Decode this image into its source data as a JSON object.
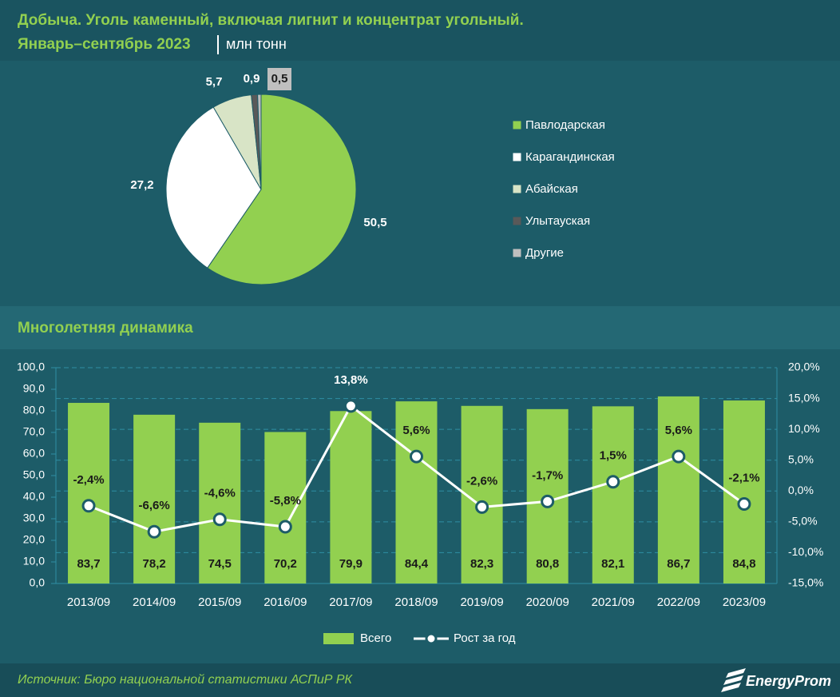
{
  "chart_data": [
    {
      "type": "pie",
      "title": "Добыча. Уголь каменный, включая лигнит и концентрат угольный.",
      "subtitle": "Январь–сентябрь 2023",
      "unit": "млн тонн",
      "categories": [
        "Павлодарская",
        "Карагандинская",
        "Абайская",
        "Улытауская",
        "Другие"
      ],
      "values": [
        50.5,
        27.2,
        5.7,
        0.9,
        0.5
      ],
      "value_labels": [
        "50,5",
        "27,2",
        "5,7",
        "0,9",
        "0,5"
      ],
      "colors": [
        "#92d050",
        "#ffffff",
        "#d8e4c6",
        "#595959",
        "#bfbfbf"
      ]
    },
    {
      "type": "bar",
      "title": "Многолетняя динамика",
      "categories": [
        "2013/09",
        "2014/09",
        "2015/09",
        "2016/09",
        "2017/09",
        "2018/09",
        "2019/09",
        "2020/09",
        "2021/09",
        "2022/09",
        "2023/09"
      ],
      "series": [
        {
          "name": "Всего",
          "type": "bar",
          "color": "#92d050",
          "values": [
            83.7,
            78.2,
            74.5,
            70.2,
            79.9,
            84.4,
            82.3,
            80.8,
            82.1,
            86.7,
            84.8
          ],
          "value_labels": [
            "83,7",
            "78,2",
            "74,5",
            "70,2",
            "79,9",
            "84,4",
            "82,3",
            "80,8",
            "82,1",
            "86,7",
            "84,8"
          ]
        },
        {
          "name": "Рост за год",
          "type": "line",
          "color": "#ffffff",
          "axis": "y2",
          "values": [
            -2.4,
            -6.6,
            -4.6,
            -5.8,
            13.8,
            5.6,
            -2.6,
            -1.7,
            1.5,
            5.6,
            -2.1
          ],
          "value_labels": [
            "-2,4%",
            "-6,6%",
            "-4,6%",
            "-5,8%",
            "13,8%",
            "5,6%",
            "-2,6%",
            "-1,7%",
            "1,5%",
            "5,6%",
            "-2,1%"
          ]
        }
      ],
      "ylim": [
        0,
        100
      ],
      "yticks": [
        {
          "value": 0,
          "label": "0,0"
        },
        {
          "value": 10,
          "label": "10,0"
        },
        {
          "value": 20,
          "label": "20,0"
        },
        {
          "value": 30,
          "label": "30,0"
        },
        {
          "value": 40,
          "label": "40,0"
        },
        {
          "value": 50,
          "label": "50,0"
        },
        {
          "value": 60,
          "label": "60,0"
        },
        {
          "value": 70,
          "label": "70,0"
        },
        {
          "value": 80,
          "label": "80,0"
        },
        {
          "value": 90,
          "label": "90,0"
        },
        {
          "value": 100,
          "label": "100,0"
        }
      ],
      "y2lim": [
        -15,
        20
      ],
      "y2ticks": [
        {
          "value": -15,
          "label": "-15,0%"
        },
        {
          "value": -10,
          "label": "-10,0%"
        },
        {
          "value": -5,
          "label": "-5,0%"
        },
        {
          "value": 0,
          "label": "0,0%"
        },
        {
          "value": 5,
          "label": "5,0%"
        },
        {
          "value": 10,
          "label": "10,0%"
        },
        {
          "value": 15,
          "label": "15,0%"
        },
        {
          "value": 20,
          "label": "20,0%"
        }
      ],
      "grid": true
    }
  ],
  "source": "Источник: Бюро национальной статистики АСПиР РК",
  "logo": "EnergyProm"
}
